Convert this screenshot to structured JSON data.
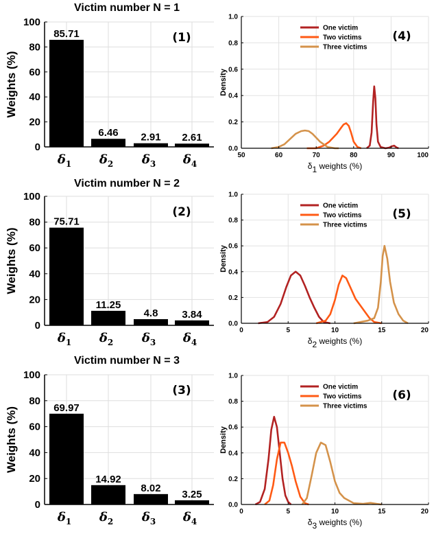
{
  "chart_data": [
    {
      "type": "bar",
      "title": "Victim number N = 1",
      "panel_tag": "(1)",
      "ylabel": "Weights (%)",
      "ylim": [
        0,
        100
      ],
      "yticks": [
        0,
        20,
        40,
        60,
        80,
        100
      ],
      "categories": [
        {
          "symbol": "δ",
          "sub": "1"
        },
        {
          "symbol": "δ",
          "sub": "2"
        },
        {
          "symbol": "δ",
          "sub": "3"
        },
        {
          "symbol": "δ",
          "sub": "4"
        }
      ],
      "values": [
        85.71,
        6.46,
        2.91,
        2.61
      ],
      "value_labels": [
        "85.71",
        "6.46",
        "2.91",
        "2.61"
      ],
      "grid": true,
      "color": "#000000"
    },
    {
      "type": "bar",
      "title": "Victim number N = 2",
      "panel_tag": "(2)",
      "ylabel": "Weights (%)",
      "ylim": [
        0,
        100
      ],
      "yticks": [
        0,
        20,
        40,
        60,
        80,
        100
      ],
      "categories": [
        {
          "symbol": "δ",
          "sub": "1"
        },
        {
          "symbol": "δ",
          "sub": "2"
        },
        {
          "symbol": "δ",
          "sub": "3"
        },
        {
          "symbol": "δ",
          "sub": "4"
        }
      ],
      "values": [
        75.71,
        11.25,
        4.8,
        3.84
      ],
      "value_labels": [
        "75.71",
        "11.25",
        "4.8",
        "3.84"
      ],
      "grid": true,
      "color": "#000000"
    },
    {
      "type": "bar",
      "title": "Victim number N = 3",
      "panel_tag": "(3)",
      "ylabel": "Weights (%)",
      "ylim": [
        0,
        100
      ],
      "yticks": [
        0,
        20,
        40,
        60,
        80,
        100
      ],
      "categories": [
        {
          "symbol": "δ",
          "sub": "1"
        },
        {
          "symbol": "δ",
          "sub": "2"
        },
        {
          "symbol": "δ",
          "sub": "3"
        },
        {
          "symbol": "δ",
          "sub": "4"
        }
      ],
      "values": [
        69.97,
        14.92,
        8.02,
        3.25
      ],
      "value_labels": [
        "69.97",
        "14.92",
        "8.02",
        "3.25"
      ],
      "grid": true,
      "color": "#000000"
    },
    {
      "type": "line",
      "panel_tag": "(4)",
      "ylabel": "Density",
      "xlabel": {
        "symbol": "δ",
        "sub": "1",
        "rest": " weights (%)"
      },
      "xlim": [
        50,
        100
      ],
      "ylim": [
        0,
        1.0
      ],
      "xticks": [
        50,
        60,
        70,
        80,
        90,
        100
      ],
      "yticks": [
        0,
        0.2,
        0.4,
        0.6,
        0.8,
        1.0
      ],
      "ytick_labels": [
        "0.0",
        "0.2",
        "0.4",
        "0.6",
        "0.8",
        "1.0"
      ],
      "grid": true,
      "legend": "top-left",
      "series": [
        {
          "name": "One victim",
          "color": "#b22222",
          "x": [
            83.5,
            84.3,
            84.8,
            85.2,
            85.5,
            85.8,
            86.1,
            86.5,
            87.2,
            88.5,
            89.5,
            90.2,
            90.8,
            91.5,
            92.0
          ],
          "y": [
            0.0,
            0.02,
            0.12,
            0.35,
            0.47,
            0.38,
            0.18,
            0.05,
            0.01,
            0.0,
            0.005,
            0.015,
            0.02,
            0.005,
            0.0
          ]
        },
        {
          "name": "Two victims",
          "color": "#ff5a14",
          "x": [
            67.5,
            70.0,
            72.0,
            73.5,
            74.5,
            75.5,
            76.5,
            77.3,
            78.0,
            78.7,
            79.3,
            80.0,
            81.0,
            82.0
          ],
          "y": [
            0.0,
            0.0,
            0.02,
            0.05,
            0.08,
            0.11,
            0.15,
            0.18,
            0.19,
            0.17,
            0.12,
            0.05,
            0.01,
            0.0
          ]
        },
        {
          "name": "Three victims",
          "color": "#d4924a",
          "x": [
            58.0,
            60.0,
            61.5,
            63.0,
            64.5,
            66.0,
            67.0,
            68.0,
            69.0,
            70.0,
            71.0,
            72.0,
            73.0,
            74.0,
            75.0,
            76.0
          ],
          "y": [
            0.0,
            0.01,
            0.03,
            0.07,
            0.11,
            0.13,
            0.135,
            0.13,
            0.11,
            0.08,
            0.05,
            0.03,
            0.01,
            0.005,
            0.0,
            0.0
          ]
        }
      ]
    },
    {
      "type": "line",
      "panel_tag": "(5)",
      "ylabel": "Density",
      "xlabel": {
        "symbol": "δ",
        "sub": "2",
        "rest": " weights (%)"
      },
      "xlim": [
        0,
        20
      ],
      "ylim": [
        0,
        1.0
      ],
      "xticks": [
        0,
        5,
        10,
        15,
        20
      ],
      "yticks": [
        0,
        0.2,
        0.4,
        0.6,
        0.8,
        1.0
      ],
      "ytick_labels": [
        "0.0",
        "0.2",
        "0.4",
        "0.6",
        "0.8",
        "1.0"
      ],
      "grid": true,
      "legend": "top-left",
      "series": [
        {
          "name": "One victim",
          "color": "#b22222",
          "x": [
            1.8,
            2.8,
            3.5,
            4.2,
            4.8,
            5.3,
            5.8,
            6.3,
            6.8,
            7.3,
            7.8,
            8.3,
            8.8,
            9.5
          ],
          "y": [
            0.0,
            0.01,
            0.05,
            0.15,
            0.28,
            0.37,
            0.4,
            0.37,
            0.29,
            0.2,
            0.12,
            0.05,
            0.01,
            0.0
          ]
        },
        {
          "name": "Two victims",
          "color": "#ff5a14",
          "x": [
            8.0,
            9.0,
            9.5,
            10.0,
            10.4,
            10.8,
            11.2,
            11.7,
            12.2,
            12.8,
            13.3,
            13.7,
            14.2,
            15.0
          ],
          "y": [
            0.0,
            0.02,
            0.07,
            0.18,
            0.3,
            0.37,
            0.35,
            0.27,
            0.19,
            0.13,
            0.08,
            0.04,
            0.01,
            0.0
          ]
        },
        {
          "name": "Three victims",
          "color": "#d4924a",
          "x": [
            12.0,
            13.5,
            14.2,
            14.6,
            14.9,
            15.1,
            15.3,
            15.6,
            15.9,
            16.3,
            16.8,
            17.3,
            17.8
          ],
          "y": [
            0.0,
            0.02,
            0.04,
            0.12,
            0.32,
            0.52,
            0.6,
            0.5,
            0.32,
            0.16,
            0.07,
            0.02,
            0.0
          ]
        }
      ]
    },
    {
      "type": "line",
      "panel_tag": "(6)",
      "ylabel": "Density",
      "xlabel": {
        "symbol": "δ",
        "sub": "3",
        "rest": " weights (%)"
      },
      "xlim": [
        0,
        20
      ],
      "ylim": [
        0,
        1.0
      ],
      "xticks": [
        0,
        5,
        10,
        15,
        20
      ],
      "yticks": [
        0,
        0.2,
        0.4,
        0.6,
        0.8,
        1.0
      ],
      "ytick_labels": [
        "0.0",
        "0.2",
        "0.4",
        "0.6",
        "0.8",
        "1.0"
      ],
      "grid": true,
      "legend": "top-left",
      "series": [
        {
          "name": "One victim",
          "color": "#b22222",
          "x": [
            1.5,
            2.0,
            2.5,
            2.9,
            3.2,
            3.5,
            3.8,
            4.1,
            4.4,
            4.7,
            5.0,
            5.3
          ],
          "y": [
            0.0,
            0.02,
            0.12,
            0.35,
            0.58,
            0.68,
            0.6,
            0.4,
            0.2,
            0.07,
            0.02,
            0.0
          ]
        },
        {
          "name": "Two victims",
          "color": "#ff5a14",
          "x": [
            2.5,
            3.0,
            3.4,
            3.8,
            4.2,
            4.6,
            5.0,
            5.4,
            5.8,
            6.3,
            6.8,
            7.2
          ],
          "y": [
            0.0,
            0.03,
            0.15,
            0.35,
            0.48,
            0.48,
            0.4,
            0.3,
            0.18,
            0.06,
            0.01,
            0.0
          ]
        },
        {
          "name": "Three victims",
          "color": "#d4924a",
          "x": [
            6.5,
            7.0,
            7.5,
            8.0,
            8.5,
            9.0,
            9.5,
            10.0,
            10.5,
            11.0,
            11.5,
            12.0,
            13.0,
            13.8,
            14.5,
            15.0
          ],
          "y": [
            0.0,
            0.05,
            0.22,
            0.4,
            0.48,
            0.46,
            0.33,
            0.18,
            0.09,
            0.05,
            0.03,
            0.01,
            0.005,
            0.012,
            0.005,
            0.0
          ]
        }
      ]
    }
  ]
}
